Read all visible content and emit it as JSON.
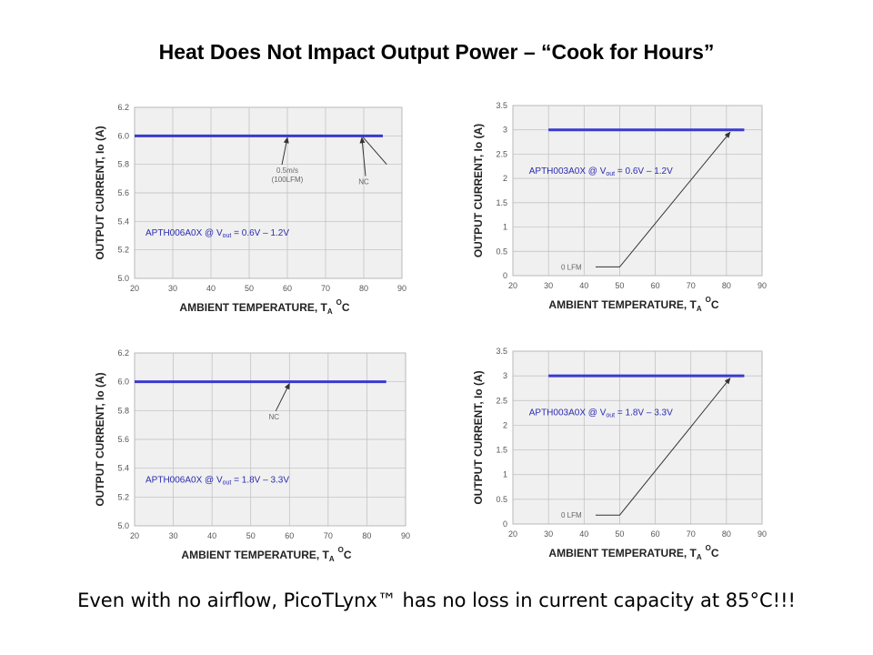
{
  "title": "Heat Does Not Impact Output Power – “Cook for Hours”",
  "footer": "Even with no airflow, PicoTLynx™ has no loss in current capacity at 85°C!!!",
  "colors": {
    "series": "#3a3ad0",
    "grid_bg": "#f0f0f0",
    "grid": "#bdbdbd",
    "annot": "#777777",
    "arrow": "#333333"
  },
  "chart_data": [
    {
      "type": "line",
      "ylabel": "OUTPUT CURRENT, Io  (A)",
      "xlabel_main": "AMBIENT TEMPERATURE, T",
      "xlabel_sub": "A",
      "xlabel_sup": "O",
      "xlabel_unit": "C",
      "xlim": [
        20,
        90
      ],
      "ylim": [
        5.0,
        6.2
      ],
      "x_ticks": [
        "20",
        "30",
        "40",
        "50",
        "60",
        "70",
        "80",
        "90"
      ],
      "y_ticks": [
        "5.0",
        "5.2",
        "5.4",
        "5.6",
        "5.8",
        "6.0",
        "6.2"
      ],
      "series": [
        {
          "name": "0.5m/s (100LFM), NC",
          "x": [
            20,
            85
          ],
          "y": [
            6.0,
            6.0
          ]
        }
      ],
      "condition": {
        "part": "APTH006A0X",
        "at": "@ V",
        "sub": "out",
        "range": "= 0.6V – 1.2V"
      },
      "annotations": [
        {
          "lines": [
            "0.5m/s",
            "(100LFM)"
          ],
          "text_xy": [
            60,
            5.74
          ],
          "to_xy": [
            60,
            6.0
          ]
        },
        {
          "lines": [
            "NC"
          ],
          "text_xy": [
            80,
            5.66
          ],
          "to_xy": [
            79.5,
            6.0
          ]
        }
      ]
    },
    {
      "type": "line",
      "ylabel": "OUTPUT CURRENT, Io  (A)",
      "xlabel_main": "AMBIENT TEMPERATURE, T",
      "xlabel_sub": "A",
      "xlabel_sup": "O",
      "xlabel_unit": "C",
      "xlim": [
        20,
        90
      ],
      "ylim": [
        0,
        3.5
      ],
      "x_ticks": [
        "20",
        "30",
        "40",
        "50",
        "60",
        "70",
        "80",
        "90"
      ],
      "y_ticks": [
        "0",
        "0.5",
        "1",
        "1.5",
        "2",
        "2.5",
        "3",
        "3.5"
      ],
      "series": [
        {
          "name": "0 LFM",
          "x": [
            30,
            85
          ],
          "y": [
            3.0,
            3.0
          ]
        }
      ],
      "condition": {
        "part": "APTH003A0X",
        "at": "@ V",
        "sub": "out",
        "range": "= 0.6V – 1.2V"
      },
      "annotations": [
        {
          "lines": [
            "0 LFM"
          ],
          "text_xy": [
            32,
            0.18
          ],
          "to_xy": [
            81,
            2.95
          ]
        }
      ]
    },
    {
      "type": "line",
      "ylabel": "OUTPUT CURRENT, Io  (A)",
      "xlabel_main": "AMBIENT TEMPERATURE, T",
      "xlabel_sub": "A",
      "xlabel_sup": "O",
      "xlabel_unit": "C",
      "xlim": [
        20,
        90
      ],
      "ylim": [
        5.0,
        6.2
      ],
      "x_ticks": [
        "20",
        "30",
        "40",
        "50",
        "60",
        "70",
        "80",
        "90"
      ],
      "y_ticks": [
        "5.0",
        "5.2",
        "5.4",
        "5.6",
        "5.8",
        "6.0",
        "6.2"
      ],
      "series": [
        {
          "name": "NC",
          "x": [
            20,
            85
          ],
          "y": [
            6.0,
            6.0
          ]
        }
      ],
      "condition": {
        "part": "APTH006A0X",
        "at": "@ V",
        "sub": "out",
        "range": "= 1.8V – 3.3V"
      },
      "annotations": [
        {
          "lines": [
            "NC"
          ],
          "text_xy": [
            56,
            5.74
          ],
          "to_xy": [
            60,
            6.0
          ]
        }
      ]
    },
    {
      "type": "line",
      "ylabel": "OUTPUT CURRENT, Io  (A)",
      "xlabel_main": "AMBIENT TEMPERATURE, T",
      "xlabel_sub": "A",
      "xlabel_sup": "O",
      "xlabel_unit": "C",
      "xlim": [
        20,
        90
      ],
      "ylim": [
        0,
        3.5
      ],
      "x_ticks": [
        "20",
        "30",
        "40",
        "50",
        "60",
        "70",
        "80",
        "90"
      ],
      "y_ticks": [
        "0",
        "0.5",
        "1",
        "1.5",
        "2",
        "2.5",
        "3",
        "3.5"
      ],
      "series": [
        {
          "name": "0 LFM",
          "x": [
            30,
            85
          ],
          "y": [
            3.0,
            3.0
          ]
        }
      ],
      "condition": {
        "part": "APTH003A0X",
        "at": "@ V",
        "sub": "out",
        "range": "= 1.8V – 3.3V"
      },
      "annotations": [
        {
          "lines": [
            "0 LFM"
          ],
          "text_xy": [
            32,
            0.18
          ],
          "to_xy": [
            81,
            2.95
          ]
        }
      ]
    }
  ]
}
